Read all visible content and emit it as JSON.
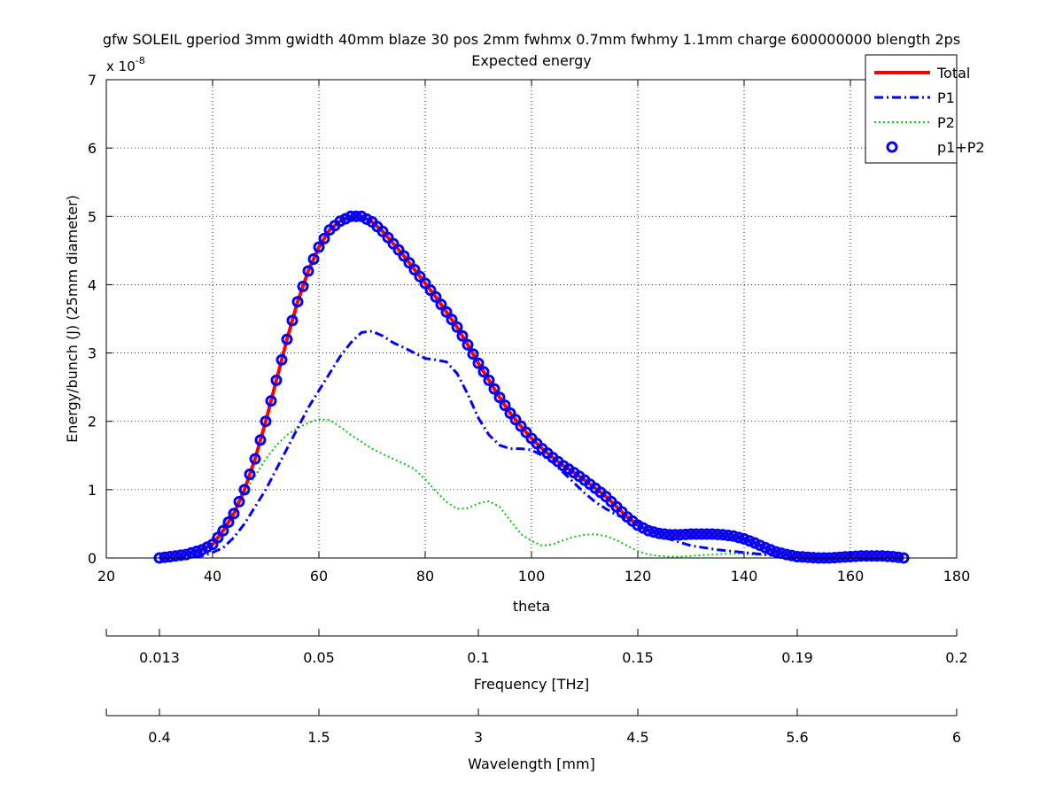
{
  "chart_data": {
    "type": "line",
    "title": "gfw SOLEIL gperiod 3mm gwidth 40mm blaze 30 pos 2mm fwhmx 0.7mm fwhmy 1.1mm charge 600000000 blength 2ps",
    "subtitle": "Expected energy",
    "xlabel": "theta",
    "ylabel": "Energy/bunch (J) (25mm diameter)",
    "y_exponent_label": "x 10",
    "y_exponent_power": "-8",
    "xlim": [
      20,
      180
    ],
    "ylim": [
      0,
      7
    ],
    "x_ticks": [
      "20",
      "40",
      "60",
      "80",
      "100",
      "120",
      "140",
      "160",
      "180"
    ],
    "y_ticks": [
      "0",
      "1",
      "2",
      "3",
      "4",
      "5",
      "6",
      "7"
    ],
    "grid": true,
    "legend_position": "top-right",
    "series": [
      {
        "name": "Total",
        "color": "#ff0000",
        "style": "solid",
        "x": [
          30,
          35,
          38,
          40,
          42,
          44,
          46,
          48,
          50,
          52,
          54,
          56,
          58,
          60,
          62,
          64,
          66,
          68,
          70,
          72,
          74,
          76,
          78,
          80,
          82,
          84,
          86,
          88,
          90,
          92,
          94,
          96,
          98,
          100,
          102,
          104,
          106,
          108,
          110,
          112,
          114,
          116,
          118,
          120,
          122,
          124,
          126,
          128,
          130,
          132,
          134,
          136,
          138,
          140,
          142,
          144,
          146,
          148,
          150,
          152,
          154,
          156,
          158,
          160,
          162,
          164,
          166,
          168,
          170
        ],
        "values": [
          0.0,
          0.05,
          0.12,
          0.2,
          0.4,
          0.65,
          1.0,
          1.45,
          2.0,
          2.6,
          3.2,
          3.75,
          4.2,
          4.55,
          4.8,
          4.93,
          5.0,
          5.0,
          4.92,
          4.78,
          4.6,
          4.42,
          4.22,
          4.02,
          3.82,
          3.6,
          3.38,
          3.12,
          2.85,
          2.6,
          2.35,
          2.12,
          1.93,
          1.75,
          1.6,
          1.47,
          1.35,
          1.25,
          1.14,
          1.02,
          0.9,
          0.75,
          0.6,
          0.48,
          0.4,
          0.36,
          0.34,
          0.34,
          0.35,
          0.35,
          0.35,
          0.34,
          0.32,
          0.28,
          0.22,
          0.15,
          0.09,
          0.05,
          0.02,
          0.01,
          0.0,
          0.0,
          0.01,
          0.02,
          0.03,
          0.03,
          0.03,
          0.02,
          0.0
        ]
      },
      {
        "name": "P1",
        "color": "#0000ff",
        "style": "dashdot",
        "x": [
          30,
          35,
          38,
          40,
          42,
          44,
          46,
          48,
          50,
          52,
          54,
          56,
          58,
          60,
          62,
          64,
          66,
          68,
          70,
          72,
          74,
          76,
          78,
          80,
          82,
          84,
          86,
          88,
          90,
          92,
          94,
          96,
          98,
          100,
          102,
          104,
          106,
          108,
          110,
          112,
          114,
          116,
          118,
          120,
          125,
          130,
          135,
          140,
          145,
          150,
          160,
          170
        ],
        "values": [
          0.0,
          0.01,
          0.03,
          0.08,
          0.15,
          0.3,
          0.5,
          0.75,
          1.0,
          1.3,
          1.6,
          1.9,
          2.2,
          2.45,
          2.7,
          2.95,
          3.15,
          3.3,
          3.32,
          3.25,
          3.15,
          3.08,
          3.0,
          2.92,
          2.9,
          2.87,
          2.7,
          2.4,
          2.05,
          1.8,
          1.65,
          1.6,
          1.6,
          1.58,
          1.5,
          1.4,
          1.25,
          1.1,
          0.95,
          0.82,
          0.72,
          0.63,
          0.57,
          0.52,
          0.3,
          0.18,
          0.12,
          0.08,
          0.04,
          0.02,
          0.0,
          0.0
        ]
      },
      {
        "name": "P2",
        "color": "#00cc00",
        "style": "dotted",
        "x": [
          30,
          35,
          38,
          40,
          42,
          44,
          46,
          48,
          50,
          52,
          54,
          56,
          58,
          60,
          62,
          64,
          66,
          68,
          70,
          72,
          74,
          76,
          78,
          80,
          82,
          84,
          86,
          88,
          90,
          92,
          94,
          96,
          98,
          100,
          102,
          104,
          106,
          108,
          110,
          112,
          114,
          116,
          118,
          120,
          122,
          124,
          126,
          128,
          130,
          132,
          134,
          136,
          138,
          140,
          142,
          144,
          146,
          148,
          150,
          155,
          160,
          170
        ],
        "values": [
          0.0,
          0.05,
          0.15,
          0.3,
          0.5,
          0.7,
          0.95,
          1.2,
          1.45,
          1.65,
          1.8,
          1.9,
          1.98,
          2.03,
          2.02,
          1.92,
          1.8,
          1.7,
          1.6,
          1.52,
          1.45,
          1.38,
          1.3,
          1.15,
          0.98,
          0.82,
          0.72,
          0.73,
          0.8,
          0.83,
          0.75,
          0.55,
          0.35,
          0.25,
          0.18,
          0.2,
          0.26,
          0.31,
          0.34,
          0.35,
          0.32,
          0.26,
          0.18,
          0.1,
          0.05,
          0.03,
          0.02,
          0.02,
          0.03,
          0.04,
          0.05,
          0.06,
          0.06,
          0.06,
          0.05,
          0.04,
          0.03,
          0.02,
          0.01,
          0.0,
          0.0,
          0.0
        ]
      },
      {
        "name": "p1+P2",
        "color": "#0000ff",
        "style": "circles",
        "x_start": 30,
        "x_end": 170,
        "x_step": 1
      }
    ],
    "secondary_axes": [
      {
        "label": "Frequency [THz]",
        "ticks": [
          {
            "theta": 20,
            "label": ""
          },
          {
            "theta": 30,
            "label": "0.013"
          },
          {
            "theta": 60,
            "label": "0.05"
          },
          {
            "theta": 90,
            "label": "0.1"
          },
          {
            "theta": 120,
            "label": "0.15"
          },
          {
            "theta": 150,
            "label": "0.19"
          },
          {
            "theta": 180,
            "label": "0.2"
          }
        ]
      },
      {
        "label": "Wavelength [mm]",
        "ticks": [
          {
            "theta": 20,
            "label": ""
          },
          {
            "theta": 30,
            "label": "0.4"
          },
          {
            "theta": 60,
            "label": "1.5"
          },
          {
            "theta": 90,
            "label": "3"
          },
          {
            "theta": 120,
            "label": "4.5"
          },
          {
            "theta": 150,
            "label": "5.6"
          },
          {
            "theta": 180,
            "label": "6"
          }
        ]
      }
    ]
  }
}
